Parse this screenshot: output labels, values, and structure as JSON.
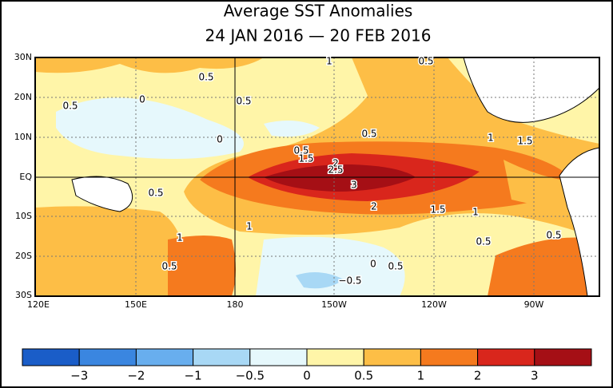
{
  "title": "Average SST Anomalies",
  "subtitle": "24 JAN 2016 — 20 FEB 2016",
  "lat_labels": [
    "30N",
    "20N",
    "10N",
    "EQ",
    "10S",
    "20S",
    "30S"
  ],
  "lon_labels": [
    "120E",
    "150E",
    "180",
    "150W",
    "120W",
    "90W"
  ],
  "contour_labels": [
    "0.5",
    "0.5",
    "0",
    "0.5",
    "1",
    "0.5",
    "0",
    "0.5",
    "0.5",
    "1.5",
    "2",
    "2.5",
    "3",
    "2",
    "1.5",
    "1",
    "1",
    "1.5",
    "0.5",
    "1",
    "1",
    "0.5",
    "0.5",
    "0.5",
    "0",
    "0.5",
    "−0.5"
  ],
  "colorbar": {
    "colors": [
      "#1a5dc8",
      "#3a86e0",
      "#68aeee",
      "#a8d8f5",
      "#e6f8fc",
      "#fff5a8",
      "#fdbe46",
      "#f57a1e",
      "#d9261c",
      "#a50f15"
    ],
    "labels": [
      "−3",
      "−2",
      "−1",
      "−0.5",
      "0",
      "0.5",
      "1",
      "2",
      "3"
    ]
  }
}
